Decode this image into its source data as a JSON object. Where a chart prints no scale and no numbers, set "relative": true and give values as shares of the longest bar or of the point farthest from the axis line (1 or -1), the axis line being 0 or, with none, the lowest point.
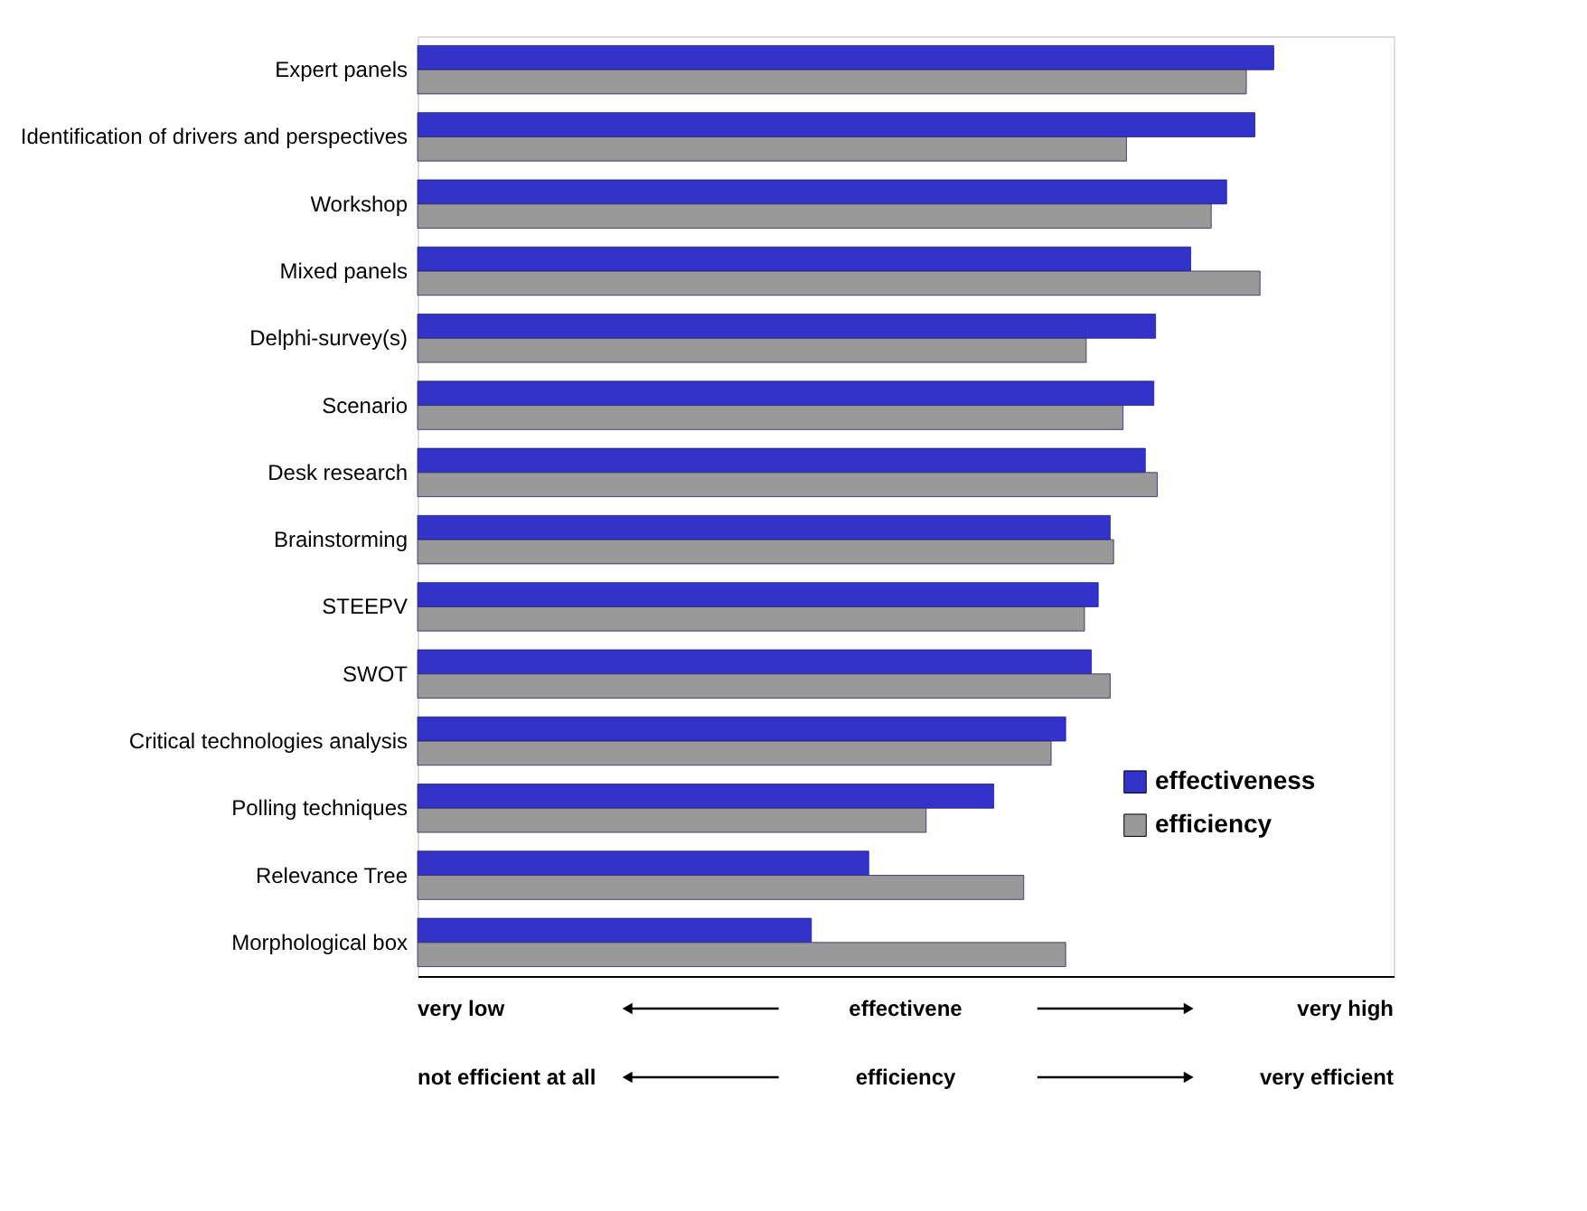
{
  "chart_data": {
    "type": "bar",
    "orientation": "horizontal",
    "relative": true,
    "categories": [
      "Expert panels",
      "Identification of drivers and perspectives",
      "Workshop",
      "Mixed panels",
      "Delphi-survey(s)",
      "Scenario",
      "Desk research",
      "Brainstorming",
      "STEEPV",
      "SWOT",
      "Critical technologies analysis",
      "Polling techniques",
      "Relevance Tree",
      "Morphological box"
    ],
    "series": [
      {
        "name": "effectiveness",
        "color": "#3333cc",
        "values": [
          1.0,
          0.978,
          0.945,
          0.903,
          0.862,
          0.86,
          0.85,
          0.809,
          0.795,
          0.787,
          0.757,
          0.673,
          0.527,
          0.46
        ]
      },
      {
        "name": "efficiency",
        "color": "#999999",
        "values": [
          0.968,
          0.828,
          0.927,
          0.984,
          0.781,
          0.824,
          0.864,
          0.813,
          0.779,
          0.809,
          0.74,
          0.594,
          0.708,
          0.757
        ]
      }
    ],
    "legend": "right",
    "annotations": [
      "very low",
      "effectivene",
      "very high",
      "not efficient at all",
      "efficiency",
      "very efficient"
    ]
  }
}
